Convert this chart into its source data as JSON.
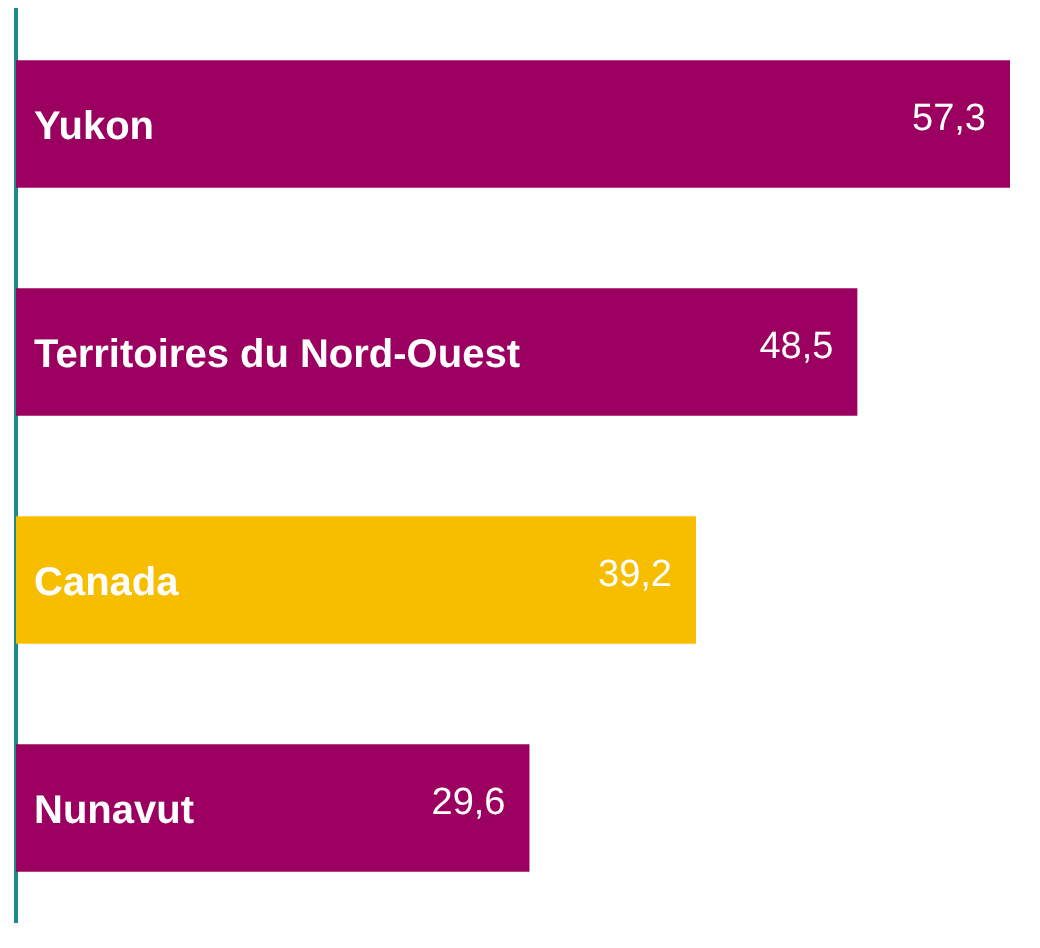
{
  "chart_data": {
    "type": "bar",
    "orientation": "horizontal",
    "categories": [
      "Yukon",
      "Territoires du Nord-Ouest",
      "Canada",
      "Nunavut"
    ],
    "values": [
      57.3,
      48.5,
      39.2,
      29.6
    ],
    "colors": [
      "#9b0060",
      "#9b0060",
      "#f7be00",
      "#9b0060"
    ],
    "value_labels": [
      "57,3",
      "48,5",
      "39,2",
      "29,6"
    ],
    "legend": false
  }
}
